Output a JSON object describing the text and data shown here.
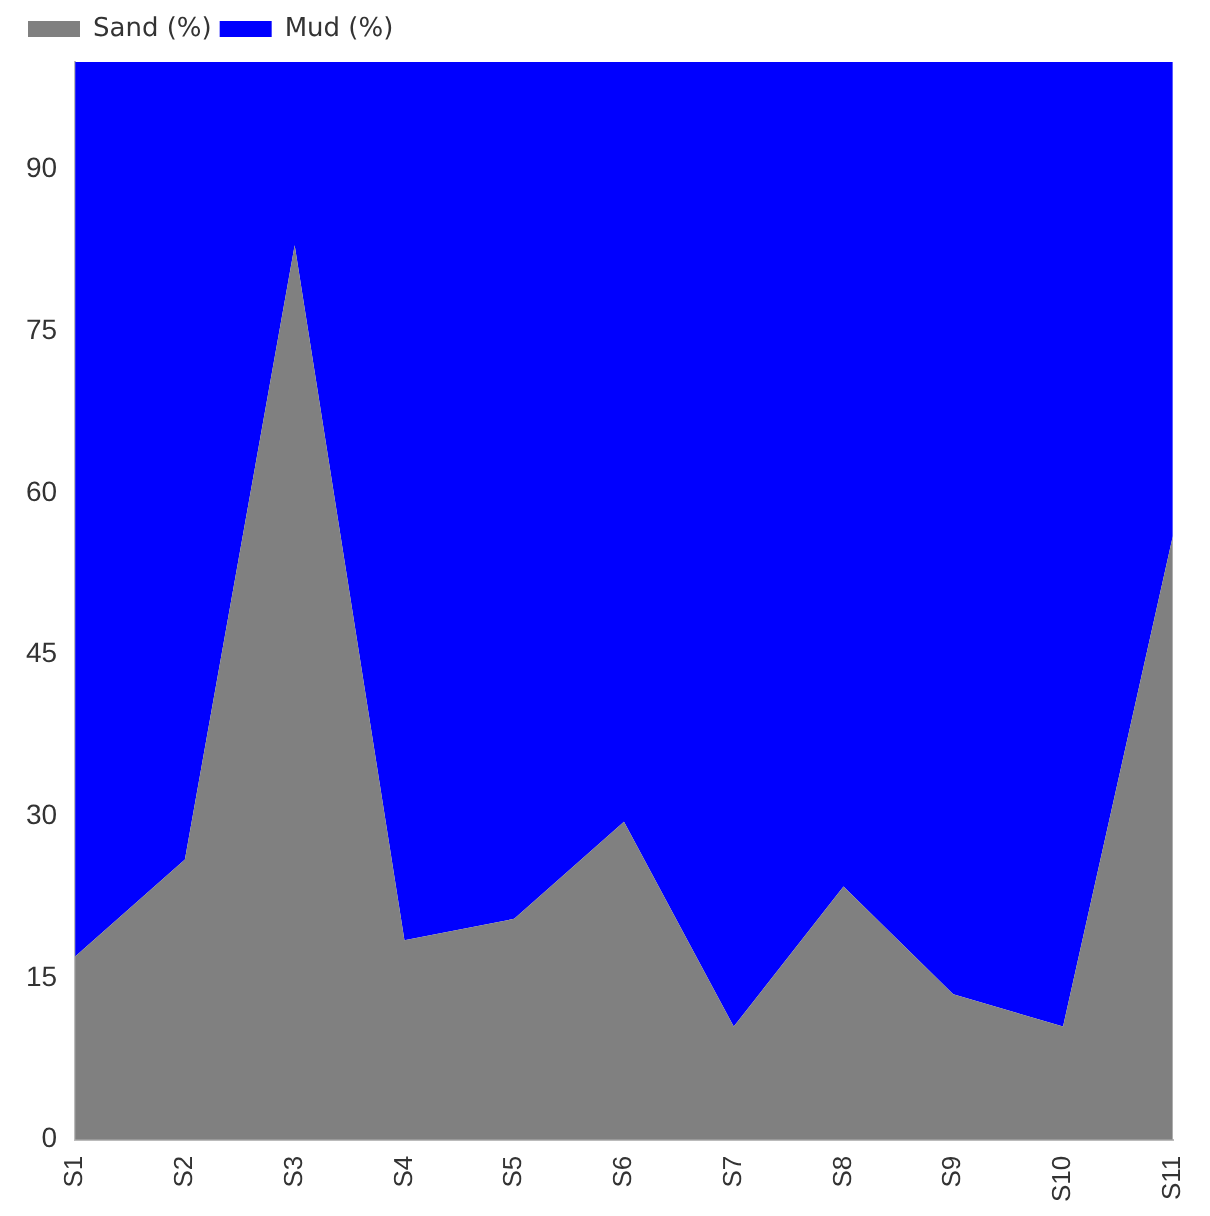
{
  "chart_data": {
    "type": "area",
    "stacked": true,
    "categories": [
      "S1",
      "S2",
      "S3",
      "S4",
      "S5",
      "S6",
      "S7",
      "S8",
      "S9",
      "S10",
      "S11"
    ],
    "series": [
      {
        "name": "Sand (%)",
        "color": "#808080",
        "values": [
          17,
          26,
          83,
          18.5,
          20.5,
          29.5,
          10.5,
          23.5,
          13.5,
          10.5,
          56
        ]
      },
      {
        "name": "Mud (%)",
        "color": "#0000ff",
        "values": [
          83,
          74,
          17,
          81.5,
          79.5,
          70.5,
          89.5,
          76.5,
          86.5,
          89.5,
          44
        ]
      }
    ],
    "ylim": [
      0,
      100
    ],
    "yticks": [
      0,
      15,
      30,
      45,
      60,
      75,
      90
    ],
    "grid": false,
    "legend": "top left"
  }
}
